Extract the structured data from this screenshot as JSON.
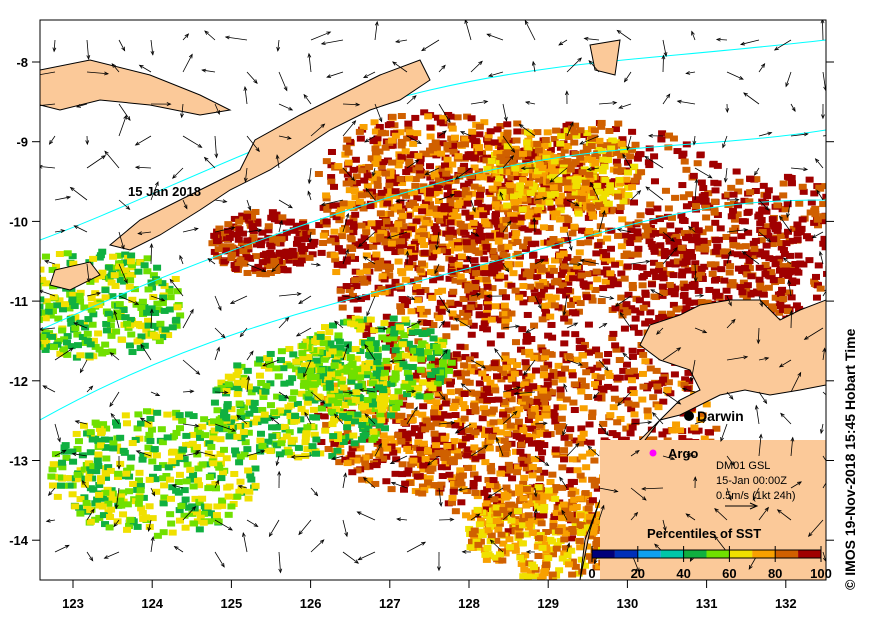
{
  "map": {
    "lon_ticks": [
      "123",
      "124",
      "125",
      "126",
      "127",
      "128",
      "129",
      "130",
      "131",
      "132"
    ],
    "lat_ticks": [
      "-8",
      "-9",
      "-10",
      "-11",
      "-12",
      "-13",
      "-14"
    ],
    "lon_values": [
      123,
      124,
      125,
      126,
      127,
      128,
      129,
      130,
      131,
      132
    ],
    "lat_values": [
      -8,
      -9,
      -10,
      -11,
      -12,
      -13,
      -14
    ],
    "lon_range": [
      122.6,
      132.6
    ],
    "lat_range": [
      -7.5,
      -14.5
    ],
    "date_label": "15 Jan 2018",
    "places": [
      {
        "name": "Darwin",
        "lon": 130.85,
        "lat": -12.45,
        "color": "#000000"
      },
      {
        "name": "Argo",
        "lon": 130.3,
        "lat": -12.9,
        "color": "#ff00ff"
      }
    ]
  },
  "info": {
    "model": "DM01 GSL",
    "time": "15-Jan 00:00Z",
    "scale": "0.5m/s (1kt 24h)"
  },
  "legend": {
    "title": "Percentiles of SST",
    "ticks": [
      "0",
      "20",
      "40",
      "60",
      "80",
      "100"
    ],
    "colors": [
      "#00007a",
      "#0030b8",
      "#10a0f0",
      "#00c8a8",
      "#10b040",
      "#70e000",
      "#f0e000",
      "#f8a000",
      "#d06000",
      "#a00000"
    ]
  },
  "credit": "© IMOS 19-Nov-2018 15:45 Hobart Time",
  "colors": {
    "land": "#fbc999",
    "contour": "#00ffff"
  }
}
